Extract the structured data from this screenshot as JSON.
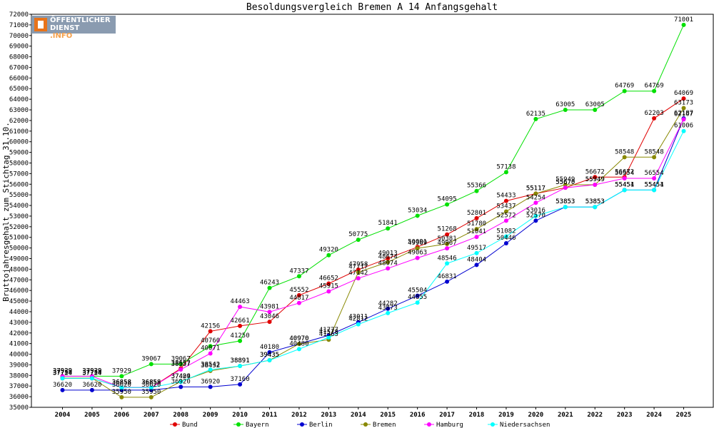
{
  "chart_data": {
    "type": "line",
    "title": "Besoldungsvergleich Bremen A 14 Anfangsgehalt",
    "ylabel": "Bruttojahresgehalt zum Stichtag 31.10.",
    "xlabel": "",
    "ylim": [
      35000,
      72000
    ],
    "ytick_step": 1000,
    "grid": false,
    "legend_position": "bottom",
    "categories": [
      "2004",
      "2005",
      "2006",
      "2007",
      "2008",
      "2009",
      "2010",
      "2011",
      "2012",
      "2013",
      "2014",
      "2015",
      "2016",
      "2017",
      "2018",
      "2019",
      "2020",
      "2021",
      "2022",
      "2023",
      "2024",
      "2025"
    ],
    "series": [
      {
        "name": "Bund",
        "color": "#e00000",
        "values": [
          37724,
          37724,
          36858,
          36858,
          38657,
          42156,
          42661,
          43046,
          45552,
          46652,
          47958,
          49013,
          50091,
          51268,
          52801,
          54433,
          55117,
          55670,
          56672,
          56672,
          62203,
          64069
        ]
      },
      {
        "name": "Bayern",
        "color": "#00e000",
        "values": [
          37929,
          37929,
          37929,
          39067,
          39067,
          40760,
          41250,
          46243,
          47337,
          49320,
          50775,
          51841,
          53034,
          54095,
          55366,
          57138,
          62135,
          63005,
          63005,
          64769,
          64769,
          71001
        ]
      },
      {
        "name": "Berlin",
        "color": "#0000d0",
        "values": [
          36620,
          36620,
          36620,
          36620,
          36920,
          36920,
          37160,
          40180,
          40970,
          41777,
          43011,
          44282,
          45504,
          46831,
          48404,
          50446,
          52570,
          53853,
          53853,
          55454,
          55454,
          62187
        ]
      },
      {
        "name": "Bremen",
        "color": "#888800",
        "values": [
          37750,
          37750,
          35950,
          35950,
          37429,
          38432,
          38891,
          39435,
          40970,
          41363,
          47717,
          48674,
          49969,
          50381,
          51780,
          53437,
          55117,
          55949,
          55949,
          58548,
          58548,
          63173
        ]
      },
      {
        "name": "Hamburg",
        "color": "#ff00ff",
        "values": [
          37929,
          37929,
          36858,
          36858,
          38557,
          40071,
          44463,
          43981,
          44817,
          45915,
          47142,
          48074,
          49063,
          49967,
          51041,
          52572,
          54254,
          55670,
          55949,
          56554,
          56554,
          62107
        ]
      },
      {
        "name": "Niedersachsen",
        "color": "#00ffff",
        "values": [
          37724,
          37724,
          36858,
          36858,
          37404,
          38542,
          38891,
          39435,
          40480,
          41578,
          42812,
          43873,
          44855,
          48546,
          49517,
          51082,
          53016,
          53853,
          53853,
          55451,
          55451,
          61006
        ]
      }
    ]
  },
  "logo": {
    "line1": "ÖFFENTLICHER",
    "line2": "DIENST",
    "line3": ".INFO"
  }
}
